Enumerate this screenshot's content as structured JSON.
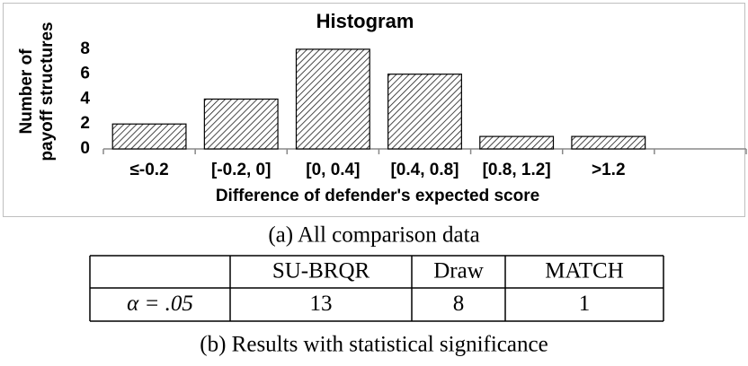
{
  "chart_data": {
    "type": "bar",
    "title": "Histogram",
    "categories": [
      "≤-0.2",
      "[-0.2, 0]",
      "[0, 0.4]",
      "[0.4, 0.8]",
      "[0.8, 1.2]",
      ">1.2",
      null
    ],
    "values": [
      2,
      4,
      8,
      6,
      1,
      1,
      null
    ],
    "color": "#1a1a1a",
    "ylim": [
      0,
      9
    ],
    "yticks": [
      0,
      2,
      4,
      6,
      8
    ],
    "grid": false,
    "ylabel": [
      "Number of",
      "payoff structures"
    ],
    "xlabel": "Difference of defender's expected score",
    "caption": "(a) All comparison data"
  },
  "table": {
    "columns": [
      "SU-BRQR",
      "Draw",
      "MATCH"
    ],
    "rows": [
      {
        "label": "α = .05",
        "values": [
          13,
          8,
          1
        ]
      }
    ],
    "caption": "(b) Results with statistical significance"
  }
}
